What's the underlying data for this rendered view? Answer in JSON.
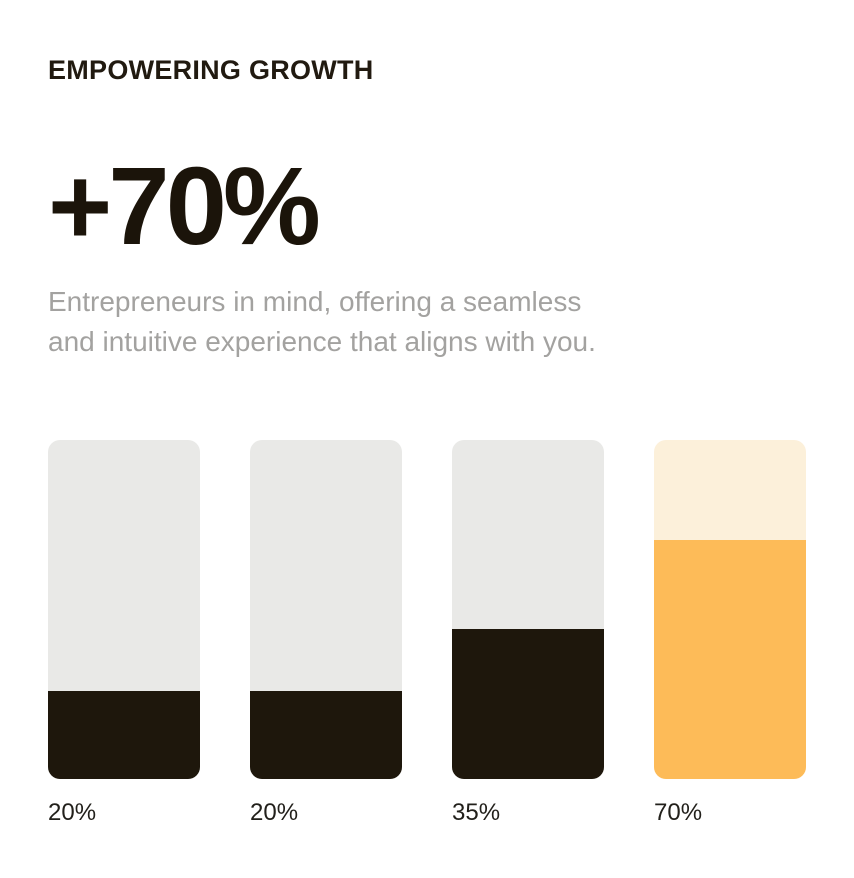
{
  "header": {
    "kicker": "EMPOWERING GROWTH",
    "headline": "+70%",
    "subtitle": "Entrepreneurs in mind, offering a seamless\nand intuitive experience that aligns with you."
  },
  "colors": {
    "background": "#ffffff",
    "text_dark": "#211a10",
    "headline_dark": "#1b140a",
    "text_gray": "#a3a2a0",
    "bar_track_gray": "#e9e9e7",
    "bar_fill_dark": "#1e170c",
    "bar_track_cream": "#fcf0da",
    "bar_fill_orange": "#fdbb58"
  },
  "chart_data": {
    "type": "bar",
    "categories": [
      "bar-1",
      "bar-2",
      "bar-3",
      "bar-4"
    ],
    "values": [
      20,
      20,
      35,
      70
    ],
    "labels": [
      "20%",
      "20%",
      "35%",
      "70%"
    ],
    "unit": "%",
    "ylim": [
      0,
      100
    ],
    "title": "EMPOWERING GROWTH",
    "xlabel": "",
    "ylabel": "",
    "grid": false,
    "legend": false,
    "highlight_index": 3
  },
  "chart": {
    "bars": [
      {
        "label": "20%",
        "value": 20,
        "fill_percent": 26,
        "track_color": "#e9e9e7",
        "fill_color": "#1e170c"
      },
      {
        "label": "20%",
        "value": 20,
        "fill_percent": 26,
        "track_color": "#e9e9e7",
        "fill_color": "#1e170c"
      },
      {
        "label": "35%",
        "value": 35,
        "fill_percent": 44.5,
        "track_color": "#e9e9e7",
        "fill_color": "#1e170c"
      },
      {
        "label": "70%",
        "value": 70,
        "fill_percent": 70.5,
        "track_color": "#fcf0da",
        "fill_color": "#fdbb58"
      }
    ]
  }
}
